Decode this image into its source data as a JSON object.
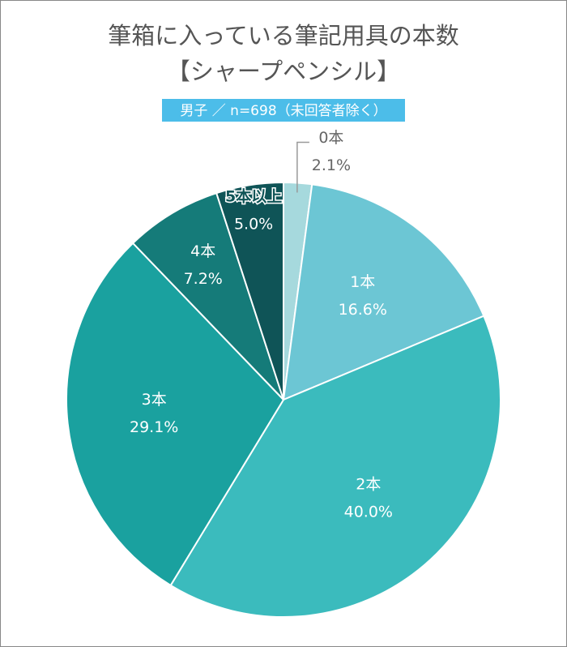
{
  "chart_data": {
    "type": "pie",
    "title": [
      "筆箱に入っている筆記用具の本数",
      "【シャープペンシル】"
    ],
    "subtitle": "男子 ／ n=698（未回答者除く）",
    "categories": [
      "0本",
      "1本",
      "2本",
      "3本",
      "4本",
      "5本以上"
    ],
    "values": [
      2.1,
      16.6,
      40.0,
      29.1,
      7.2,
      5.0
    ],
    "value_labels": [
      "2.1%",
      "16.6%",
      "40.0%",
      "29.1%",
      "7.2%",
      "5.0%"
    ],
    "colors": [
      "#a6d9dd",
      "#6cc6d4",
      "#3bbbbd",
      "#1aa19f",
      "#157b79",
      "#0f5457"
    ]
  }
}
